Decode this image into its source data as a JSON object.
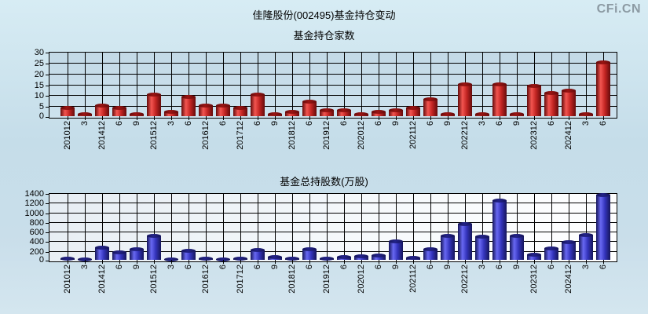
{
  "header": {
    "title": "佳隆股份(002495)基金持仓变动",
    "logo": "CFi.CN"
  },
  "colors": {
    "red_bar": {
      "dark": "#650b0b",
      "light": "#f25550",
      "mid": "#c32523",
      "cap": "#9a1412"
    },
    "blue_bar": {
      "dark": "#15155a",
      "light": "#6868f2",
      "mid": "#3434bc",
      "cap": "#222288"
    },
    "gridline": "#000000",
    "page_background": "#cbe0eb",
    "logo_color": "#8c9aa3"
  },
  "chart_data": [
    {
      "type": "bar",
      "title": "基金持仓家数",
      "categories": [
        "201012",
        "3",
        "201412",
        "6",
        "9",
        "201512",
        "3",
        "6",
        "201612",
        "6",
        "201712",
        "6",
        "9",
        "201812",
        "6",
        "201912",
        "6",
        "202012",
        "6",
        "9",
        "202112",
        "6",
        "9",
        "202212",
        "3",
        "6",
        "9",
        "202312",
        "6",
        "202412",
        "3",
        "6"
      ],
      "values": [
        4,
        1,
        5,
        4,
        1,
        10,
        2,
        9,
        5,
        5,
        4,
        10,
        1,
        2,
        7,
        3,
        3,
        1,
        2,
        3,
        4,
        8,
        1,
        15,
        1,
        15,
        1,
        14,
        11,
        12,
        1,
        25
      ],
      "xlabel": "",
      "ylabel": "",
      "ylim": [
        0,
        30
      ],
      "ystep": 5,
      "grid": true,
      "legend_position": "none",
      "bar_color": "red_bar"
    },
    {
      "type": "bar",
      "title": "基金总持股数(万股)",
      "categories": [
        "201012",
        "3",
        "201412",
        "6",
        "9",
        "201512",
        "3",
        "6",
        "201612",
        "6",
        "201712",
        "6",
        "9",
        "201812",
        "6",
        "201912",
        "6",
        "202012",
        "6",
        "9",
        "202112",
        "6",
        "9",
        "202212",
        "3",
        "6",
        "9",
        "202312",
        "6",
        "202412",
        "3",
        "6"
      ],
      "values": [
        40,
        10,
        260,
        170,
        230,
        500,
        20,
        190,
        25,
        20,
        25,
        210,
        60,
        30,
        225,
        40,
        60,
        80,
        100,
        390,
        50,
        220,
        500,
        750,
        490,
        1240,
        510,
        120,
        240,
        370,
        520,
        1350
      ],
      "xlabel": "",
      "ylabel": "",
      "ylim": [
        0,
        1400
      ],
      "ystep": 200,
      "grid": true,
      "legend_position": "none",
      "bar_color": "blue_bar"
    }
  ]
}
